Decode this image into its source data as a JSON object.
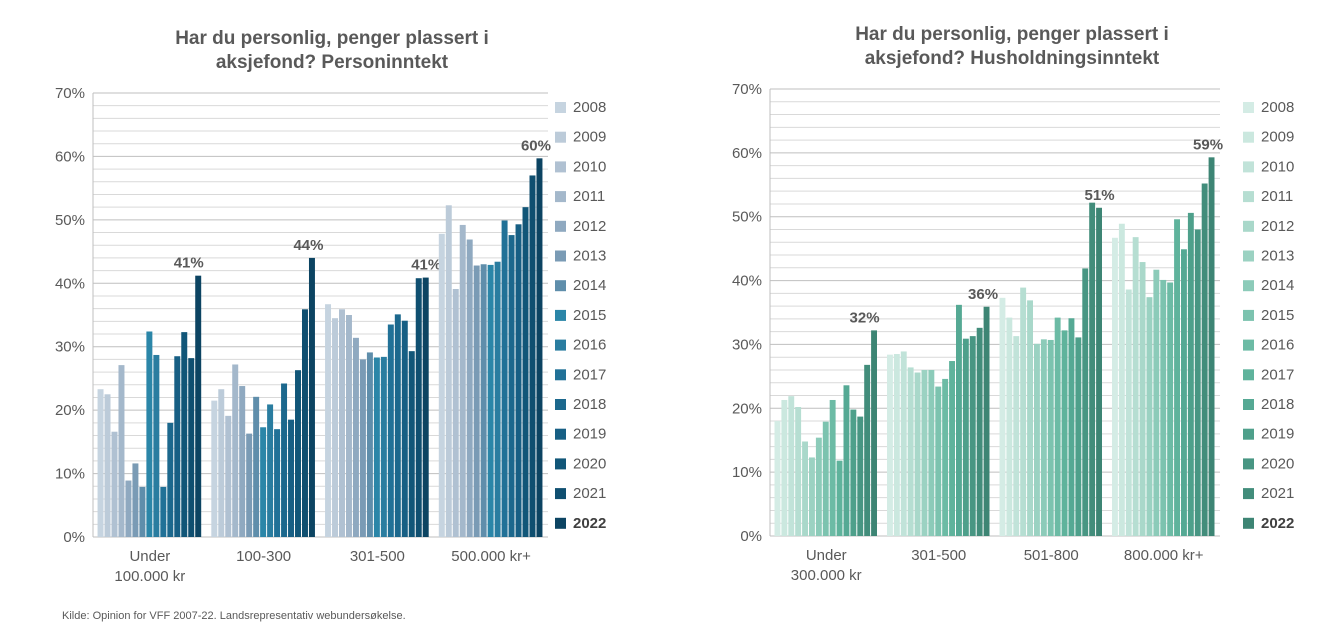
{
  "source_note": "Kilde: Opinion for VFF 2007-22. Landsrepresentativ webundersøkelse.",
  "chart_data": [
    {
      "type": "bar",
      "title_lines": [
        "Har du personlig, penger plassert i",
        "aksjefond? Personinntekt"
      ],
      "categories": [
        [
          "Under",
          "100.000 kr"
        ],
        [
          "100-300"
        ],
        [
          "301-500"
        ],
        [
          "500.000 kr+"
        ]
      ],
      "legend": [
        "2008",
        "2009",
        "2010",
        "2011",
        "2012",
        "2013",
        "2014",
        "2015",
        "2016",
        "2017",
        "2018",
        "2019",
        "2020",
        "2021",
        "2022"
      ],
      "ylim": [
        0,
        70
      ],
      "yticks": [
        "0%",
        "10%",
        "20%",
        "30%",
        "40%",
        "50%",
        "60%",
        "70%"
      ],
      "grid": true,
      "legend_placement": "right",
      "colors": [
        "#c6d4e0",
        "#bccbd9",
        "#b0c1d2",
        "#a4b8cb",
        "#8fa9c0",
        "#7a9bb5",
        "#5f8eab",
        "#2b86a8",
        "#2a7da0",
        "#217197",
        "#1c688d",
        "#175f84",
        "#115678",
        "#0f4f70",
        "#0c4462"
      ],
      "series": [
        {
          "name": "2008",
          "values": [
            23.3,
            21.5,
            36.7,
            47.8
          ]
        },
        {
          "name": "2009",
          "values": [
            22.5,
            23.3,
            34.5,
            52.3
          ]
        },
        {
          "name": "2010",
          "values": [
            16.6,
            19.1,
            35.9,
            39.1
          ]
        },
        {
          "name": "2011",
          "values": [
            27.1,
            27.2,
            35.0,
            49.2
          ]
        },
        {
          "name": "2012",
          "values": [
            8.9,
            23.8,
            31.4,
            46.9
          ]
        },
        {
          "name": "2013",
          "values": [
            11.6,
            16.3,
            28.0,
            42.8
          ]
        },
        {
          "name": "2014",
          "values": [
            7.9,
            22.1,
            29.1,
            43.0
          ]
        },
        {
          "name": "2015",
          "values": [
            32.4,
            17.3,
            28.3,
            42.9
          ]
        },
        {
          "name": "2016",
          "values": [
            28.7,
            20.9,
            28.4,
            43.4
          ]
        },
        {
          "name": "2017",
          "values": [
            7.9,
            17.0,
            33.5,
            49.9
          ]
        },
        {
          "name": "2018",
          "values": [
            18.0,
            24.2,
            35.1,
            47.6
          ]
        },
        {
          "name": "2019",
          "values": [
            28.5,
            18.5,
            34.1,
            49.3
          ]
        },
        {
          "name": "2020",
          "values": [
            32.3,
            26.3,
            29.3,
            52.0
          ]
        },
        {
          "name": "2021",
          "values": [
            28.2,
            35.9,
            40.8,
            57.0
          ]
        },
        {
          "name": "2022",
          "values": [
            41.2,
            44.0,
            40.9,
            59.7
          ]
        }
      ],
      "data_labels": [
        "41%",
        "44%",
        "41%",
        "60%"
      ]
    },
    {
      "type": "bar",
      "title_lines": [
        "Har du personlig, penger plassert i",
        "aksjefond? Husholdningsinntekt"
      ],
      "categories": [
        [
          "Under",
          "300.000  kr"
        ],
        [
          "301-500"
        ],
        [
          "501-800"
        ],
        [
          "800.000 kr+"
        ]
      ],
      "legend": [
        "2008",
        "2009",
        "2010",
        "2011",
        "2012",
        "2013",
        "2014",
        "2015",
        "2016",
        "2017",
        "2018",
        "2019",
        "2020",
        "2021",
        "2022"
      ],
      "ylim": [
        0,
        70
      ],
      "yticks": [
        "0%",
        "10%",
        "20%",
        "30%",
        "40%",
        "50%",
        "60%",
        "70%"
      ],
      "grid": true,
      "legend_placement": "right",
      "colors": [
        "#d4ece5",
        "#cbe8df",
        "#c1e3d9",
        "#b6ded2",
        "#a9d8ca",
        "#9bd2c2",
        "#8ccbb9",
        "#7cc3af",
        "#6cbba5",
        "#5fb39c",
        "#55a994",
        "#4ea08b",
        "#489683",
        "#428d7b",
        "#3d8574"
      ],
      "series": [
        {
          "name": "2008",
          "values": [
            18.0,
            28.4,
            37.3,
            46.7
          ]
        },
        {
          "name": "2009",
          "values": [
            21.3,
            28.5,
            34.2,
            48.9
          ]
        },
        {
          "name": "2010",
          "values": [
            21.9,
            28.9,
            31.3,
            38.6
          ]
        },
        {
          "name": "2011",
          "values": [
            20.2,
            26.4,
            38.9,
            46.8
          ]
        },
        {
          "name": "2012",
          "values": [
            14.8,
            25.6,
            36.9,
            42.9
          ]
        },
        {
          "name": "2013",
          "values": [
            12.3,
            26.0,
            30.1,
            37.4
          ]
        },
        {
          "name": "2014",
          "values": [
            15.4,
            26.0,
            30.8,
            41.7
          ]
        },
        {
          "name": "2015",
          "values": [
            17.9,
            23.4,
            30.7,
            40.1
          ]
        },
        {
          "name": "2016",
          "values": [
            21.3,
            24.6,
            34.2,
            39.7
          ]
        },
        {
          "name": "2017",
          "values": [
            11.8,
            27.4,
            32.2,
            49.6
          ]
        },
        {
          "name": "2018",
          "values": [
            23.6,
            36.2,
            34.1,
            44.9
          ]
        },
        {
          "name": "2019",
          "values": [
            19.8,
            30.9,
            31.1,
            50.6
          ]
        },
        {
          "name": "2020",
          "values": [
            18.7,
            31.3,
            41.9,
            48.0
          ]
        },
        {
          "name": "2021",
          "values": [
            26.8,
            32.6,
            52.2,
            55.2
          ]
        },
        {
          "name": "2022",
          "values": [
            32.2,
            35.9,
            51.4,
            59.3
          ]
        }
      ],
      "data_labels": [
        "32%",
        "36%",
        "51%",
        "59%"
      ]
    }
  ]
}
